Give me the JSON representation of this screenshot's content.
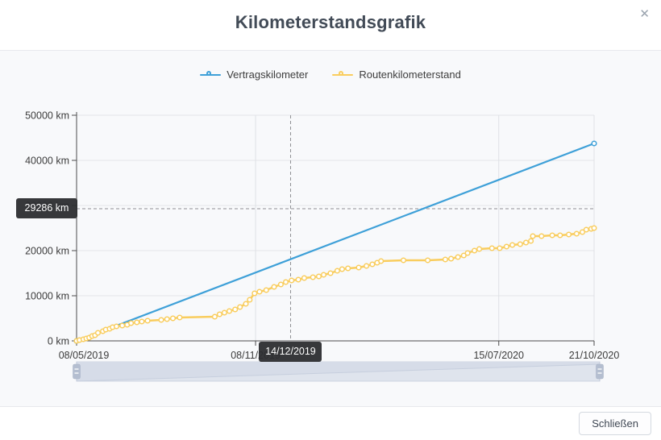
{
  "modal": {
    "title": "Kilometerstandsgrafik",
    "close_icon": "✕",
    "footer": {
      "close_button": "Schließen"
    }
  },
  "chart_data": {
    "type": "line",
    "legend_position": "top-center",
    "grid": true,
    "x_axis": {
      "type": "time",
      "range_days": 532,
      "ticks": [
        {
          "day": 0,
          "label": "08/05/2019"
        },
        {
          "day": 184,
          "label": "08/11/2019"
        },
        {
          "day": 434,
          "label": "15/07/2020"
        },
        {
          "day": 532,
          "label": "21/10/2020"
        }
      ]
    },
    "y_axis": {
      "unit": "km",
      "min": 0,
      "max": 50000,
      "ticks": [
        {
          "value": 0,
          "label": "0 km"
        },
        {
          "value": 10000,
          "label": "10000 km"
        },
        {
          "value": 20000,
          "label": "20000 km"
        },
        {
          "value": 30000,
          "label": "30000 km"
        },
        {
          "value": 40000,
          "label": "40000 km"
        },
        {
          "value": 50000,
          "label": "50000 km"
        }
      ]
    },
    "crosshair": {
      "day": 220,
      "x_label": "14/12/2019",
      "value": 29286,
      "y_label": "29286 km"
    },
    "series": [
      {
        "name": "Vertragskilometer",
        "color": "#3ea0d8",
        "points": [
          [
            0,
            0
          ],
          [
            532,
            43750
          ]
        ]
      },
      {
        "name": "Routenkilometerstand",
        "color": "#f9cd5e",
        "points": [
          [
            0,
            0
          ],
          [
            3,
            180
          ],
          [
            7,
            360
          ],
          [
            10,
            540
          ],
          [
            13,
            715
          ],
          [
            16,
            1070
          ],
          [
            19,
            1250
          ],
          [
            22,
            1790
          ],
          [
            27,
            2140
          ],
          [
            30,
            2500
          ],
          [
            34,
            2680
          ],
          [
            37,
            3040
          ],
          [
            41,
            3215
          ],
          [
            47,
            3390
          ],
          [
            52,
            3570
          ],
          [
            56,
            3930
          ],
          [
            62,
            4100
          ],
          [
            67,
            4285
          ],
          [
            73,
            4465
          ],
          [
            87,
            4640
          ],
          [
            93,
            4820
          ],
          [
            99,
            5000
          ],
          [
            106,
            5180
          ],
          [
            142,
            5360
          ],
          [
            147,
            5890
          ],
          [
            152,
            6250
          ],
          [
            157,
            6600
          ],
          [
            163,
            6960
          ],
          [
            168,
            7500
          ],
          [
            174,
            8215
          ],
          [
            178,
            9100
          ],
          [
            183,
            10540
          ],
          [
            188,
            10900
          ],
          [
            195,
            11250
          ],
          [
            203,
            11965
          ],
          [
            210,
            12500
          ],
          [
            215,
            13040
          ],
          [
            221,
            13390
          ],
          [
            228,
            13570
          ],
          [
            234,
            13930
          ],
          [
            243,
            14100
          ],
          [
            249,
            14285
          ],
          [
            254,
            14640
          ],
          [
            261,
            15000
          ],
          [
            268,
            15535
          ],
          [
            273,
            15890
          ],
          [
            279,
            16070
          ],
          [
            290,
            16250
          ],
          [
            298,
            16600
          ],
          [
            304,
            16965
          ],
          [
            309,
            17320
          ],
          [
            313,
            17680
          ],
          [
            336,
            17860
          ],
          [
            361,
            17860
          ],
          [
            379,
            18040
          ],
          [
            385,
            18215
          ],
          [
            392,
            18570
          ],
          [
            398,
            18930
          ],
          [
            402,
            19465
          ],
          [
            409,
            20000
          ],
          [
            414,
            20360
          ],
          [
            427,
            20540
          ],
          [
            435,
            20540
          ],
          [
            442,
            20890
          ],
          [
            448,
            21250
          ],
          [
            456,
            21430
          ],
          [
            462,
            21785
          ],
          [
            467,
            22140
          ],
          [
            469,
            23215
          ],
          [
            478,
            23215
          ],
          [
            489,
            23390
          ],
          [
            497,
            23390
          ],
          [
            506,
            23570
          ],
          [
            514,
            23750
          ],
          [
            520,
            24110
          ],
          [
            524,
            24640
          ],
          [
            529,
            24820
          ],
          [
            532,
            25000
          ]
        ]
      }
    ]
  }
}
